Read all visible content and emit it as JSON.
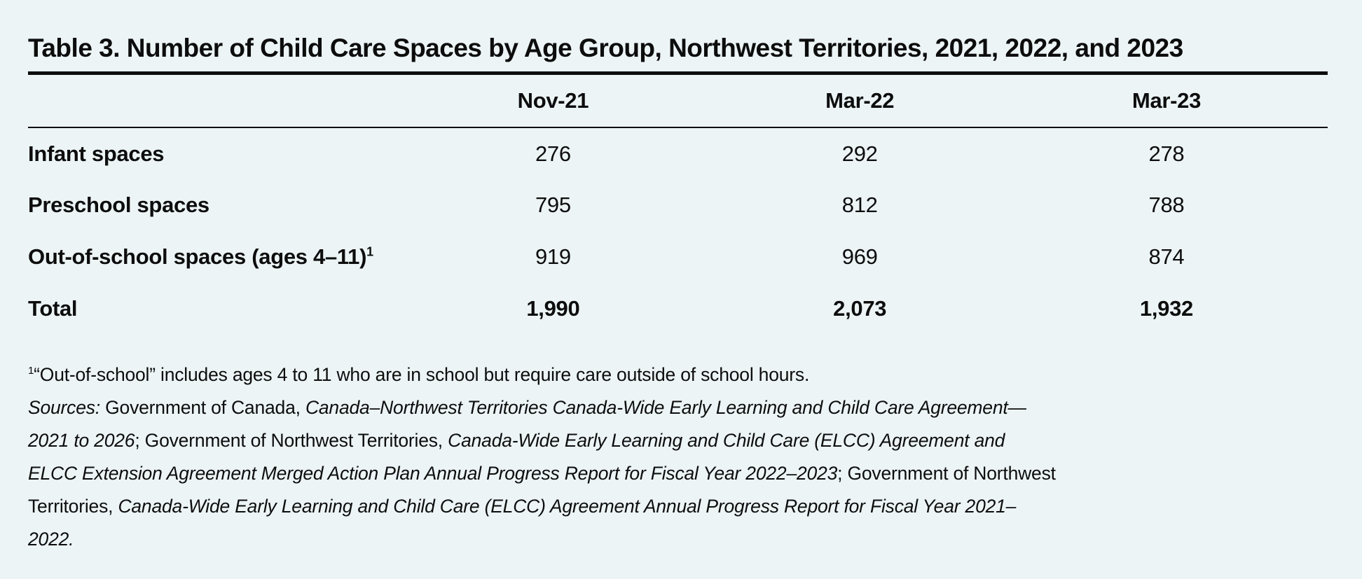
{
  "page": {
    "background_color": "#ecf4f6",
    "text_color": "#0d0d0d"
  },
  "table": {
    "title": "Table 3. Number of Child Care Spaces by Age Group, Northwest Territories, 2021, 2022, and 2023",
    "columns": [
      "Nov-21",
      "Mar-22",
      "Mar-23"
    ],
    "rows": [
      {
        "label": "Infant spaces",
        "values": [
          "276",
          "292",
          "278"
        ],
        "is_total": false
      },
      {
        "label": "Preschool spaces",
        "values": [
          "795",
          "812",
          "788"
        ],
        "is_total": false
      },
      {
        "label": "Out-of-school spaces (ages 4–11)",
        "label_sup": "1",
        "values": [
          "919",
          "969",
          "874"
        ],
        "is_total": false
      },
      {
        "label": "Total",
        "values": [
          "1,990",
          "2,073",
          "1,932"
        ],
        "is_total": true
      }
    ]
  },
  "notes": {
    "footnote_marker": "1",
    "footnote_text": "“Out-of-school” includes ages 4 to 11 who are in school but require care outside of school hours.",
    "sources_segments": [
      {
        "text": "Sources:",
        "italic": true
      },
      {
        "text": " Government of Canada, ",
        "italic": false
      },
      {
        "text": "Canada–Northwest Territories Canada-Wide Early Learning and Child Care Agreement—2021 to 2026",
        "italic": true
      },
      {
        "text": "; Government of Northwest Territories, ",
        "italic": false
      },
      {
        "text": "Canada-Wide Early Learning and Child Care (ELCC) Agreement and ELCC Extension Agreement Merged Action Plan Annual Progress Report for Fiscal Year 2022–2023",
        "italic": true
      },
      {
        "text": "; Government of Northwest Territories, ",
        "italic": false
      },
      {
        "text": "Canada-Wide Early Learning and Child Care (ELCC) Agreement Annual Progress Report for Fiscal Year 2021–2022.",
        "italic": true
      }
    ]
  }
}
